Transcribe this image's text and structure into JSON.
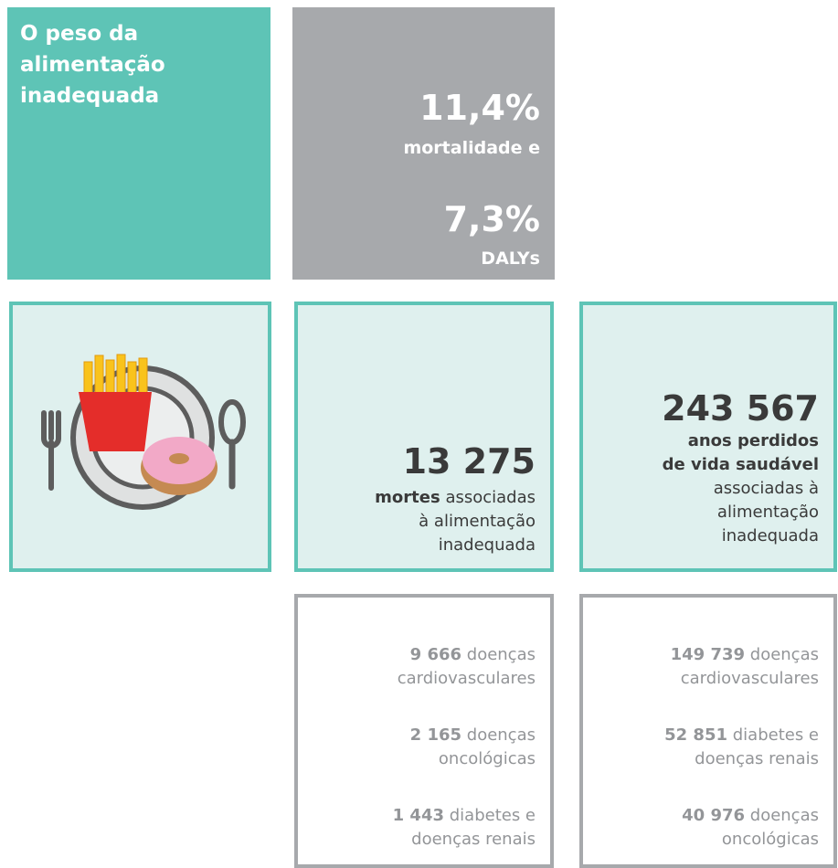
{
  "header": {
    "title": "O peso da alimentação inadequada"
  },
  "stats": [
    {
      "value": "11,4%",
      "label": "mortalidade e"
    },
    {
      "value": "7,3%",
      "label": "DALYs"
    }
  ],
  "deaths": {
    "value": "13 275",
    "bold": "mortes",
    "lines": [
      "associadas",
      "à alimentação",
      "inadequada"
    ]
  },
  "dalys": {
    "value": "243 567",
    "bold": [
      "anos perdidos",
      "de vida saudável"
    ],
    "lines": [
      "associadas à",
      "alimentação",
      "inadequada"
    ]
  },
  "breakdowns": [
    {
      "items": [
        {
          "value": "9 666",
          "text": [
            "doenças",
            "cardiovasculares"
          ]
        },
        {
          "value": "2 165",
          "text": [
            "doenças",
            "oncológicas"
          ]
        },
        {
          "value": "1 443",
          "text": [
            "diabetes e",
            "doenças renais"
          ]
        }
      ]
    },
    {
      "items": [
        {
          "value": "149 739",
          "text": [
            "doenças",
            "cardiovasculares"
          ]
        },
        {
          "value": "52 851",
          "text": [
            "diabetes e",
            "doenças renais"
          ]
        },
        {
          "value": "40 976",
          "text": [
            "doenças",
            "oncológicas"
          ]
        }
      ]
    }
  ]
}
